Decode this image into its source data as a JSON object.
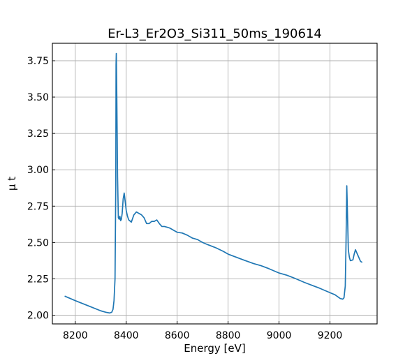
{
  "chart_data": {
    "type": "line",
    "title": "Er-L3_Er2O3_Si311_50ms_190614",
    "xlabel": "Energy [eV]",
    "ylabel": "μ t",
    "xlim": [
      8110,
      9385
    ],
    "ylim": [
      1.94,
      3.87
    ],
    "xticks": [
      8200,
      8400,
      8600,
      8800,
      9000,
      9200
    ],
    "yticks": [
      2.0,
      2.25,
      2.5,
      2.75,
      3.0,
      3.25,
      3.5,
      3.75
    ],
    "xtick_labels": [
      "8200",
      "8400",
      "8600",
      "8800",
      "9000",
      "9200"
    ],
    "ytick_labels": [
      "2.00",
      "2.25",
      "2.50",
      "2.75",
      "3.00",
      "3.25",
      "3.50",
      "3.75"
    ],
    "grid": true,
    "colors": {
      "line": "#1f77b4"
    },
    "series": [
      {
        "x": [
          8160,
          8200,
          8250,
          8300,
          8320,
          8335,
          8343,
          8348,
          8352,
          8356,
          8359,
          8360,
          8361,
          8363,
          8366,
          8369,
          8372,
          8375,
          8378,
          8381,
          8384,
          8388,
          8392,
          8396,
          8400,
          8405,
          8410,
          8420,
          8430,
          8440,
          8450,
          8460,
          8470,
          8480,
          8490,
          8500,
          8510,
          8520,
          8530,
          8540,
          8550,
          8560,
          8570,
          8600,
          8620,
          8640,
          8660,
          8680,
          8700,
          8720,
          8750,
          8780,
          8800,
          8830,
          8860,
          8900,
          8930,
          8960,
          9000,
          9030,
          9060,
          9100,
          9130,
          9160,
          9200,
          9220,
          9240,
          9250,
          9255,
          9260,
          9263,
          9266,
          9268,
          9272,
          9276,
          9280,
          9290,
          9295,
          9300,
          9310,
          9320,
          9325
        ],
        "y": [
          2.13,
          2.1,
          2.065,
          2.03,
          2.02,
          2.015,
          2.02,
          2.04,
          2.1,
          2.25,
          2.9,
          3.72,
          3.8,
          3.5,
          2.95,
          2.67,
          2.66,
          2.68,
          2.65,
          2.66,
          2.7,
          2.8,
          2.84,
          2.78,
          2.72,
          2.68,
          2.655,
          2.64,
          2.69,
          2.71,
          2.7,
          2.69,
          2.67,
          2.63,
          2.63,
          2.645,
          2.645,
          2.655,
          2.63,
          2.61,
          2.61,
          2.605,
          2.6,
          2.57,
          2.565,
          2.55,
          2.53,
          2.52,
          2.5,
          2.485,
          2.465,
          2.44,
          2.42,
          2.4,
          2.38,
          2.355,
          2.34,
          2.32,
          2.29,
          2.275,
          2.255,
          2.225,
          2.205,
          2.185,
          2.155,
          2.14,
          2.115,
          2.11,
          2.12,
          2.2,
          2.5,
          2.89,
          2.75,
          2.45,
          2.4,
          2.375,
          2.38,
          2.42,
          2.45,
          2.41,
          2.37,
          2.365
        ]
      }
    ]
  }
}
